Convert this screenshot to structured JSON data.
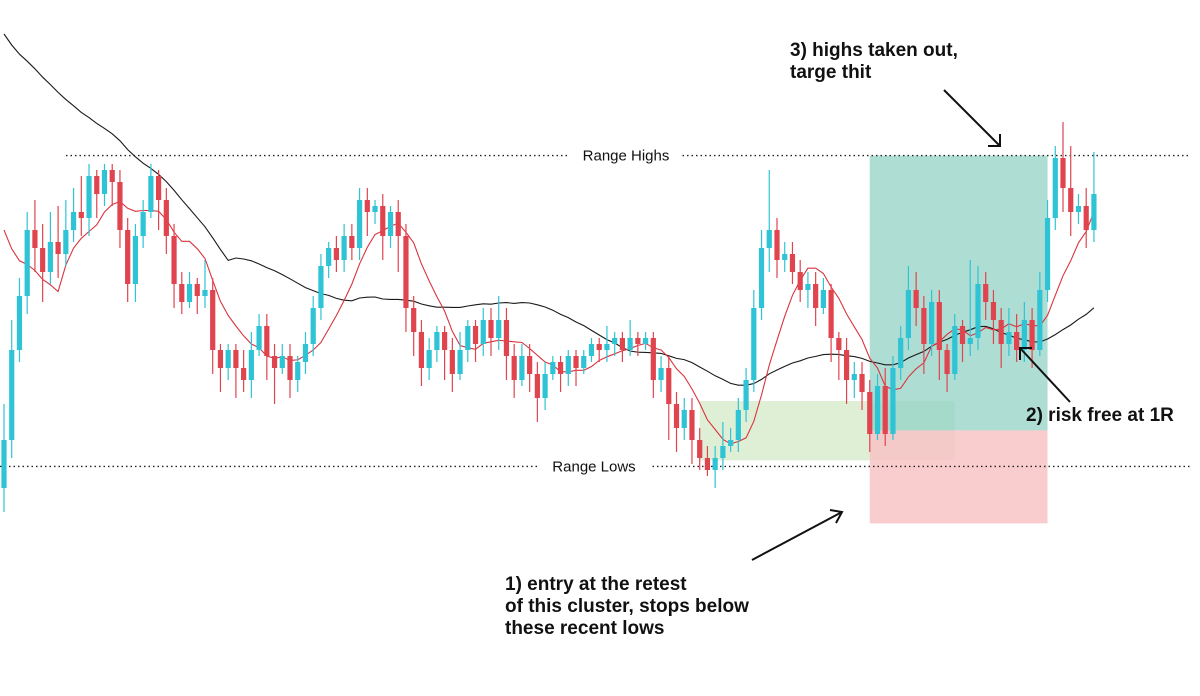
{
  "chart_data": {
    "type": "candlestick",
    "title": "",
    "xlabel": "",
    "ylabel": "",
    "ylim": [
      0,
      100
    ],
    "grid": false,
    "colors": {
      "up": "#2ec4d6",
      "down": "#e0444f",
      "ma_fast": "#d9343e",
      "ma_slow": "#1a1a1a",
      "entry_zone": "#d8eccf",
      "profit_zone": "#8fd0c4",
      "loss_zone": "#f8c3c6",
      "level_line": "#222222"
    },
    "levels": [
      {
        "label": "Range Highs",
        "value": 77.4
      },
      {
        "label": "Range Lows",
        "value": 25.6
      }
    ],
    "zones": [
      {
        "name": "entry-cluster",
        "x0": 90,
        "x1": 123,
        "y0": 26.6,
        "y1": 36.5
      },
      {
        "name": "target-zone",
        "x0": 112,
        "x1": 135,
        "y0": 31.6,
        "y1": 77.4
      },
      {
        "name": "stop-zone",
        "x0": 112,
        "x1": 135,
        "y0": 16.1,
        "y1": 31.6
      }
    ],
    "candles": [
      [
        22,
        30,
        18,
        36
      ],
      [
        30,
        45,
        27,
        50
      ],
      [
        45,
        54,
        43,
        57
      ],
      [
        54,
        65,
        51,
        68
      ],
      [
        65,
        62,
        58,
        70
      ],
      [
        62,
        58,
        53,
        66
      ],
      [
        58,
        63,
        56,
        68
      ],
      [
        63,
        61,
        57,
        69
      ],
      [
        61,
        65,
        59,
        70
      ],
      [
        65,
        68,
        63,
        72
      ],
      [
        68,
        67,
        64,
        74
      ],
      [
        67,
        74,
        64,
        76
      ],
      [
        74,
        71,
        67,
        75
      ],
      [
        71,
        75,
        69,
        76
      ],
      [
        75,
        73,
        69,
        76
      ],
      [
        73,
        65,
        62,
        75
      ],
      [
        65,
        56,
        53,
        67
      ],
      [
        56,
        64,
        53,
        66
      ],
      [
        64,
        68,
        62,
        70
      ],
      [
        68,
        74,
        67,
        76
      ],
      [
        74,
        70,
        65,
        75
      ],
      [
        70,
        64,
        61,
        72
      ],
      [
        64,
        56,
        52,
        66
      ],
      [
        56,
        53,
        51,
        58
      ],
      [
        53,
        56,
        52,
        58
      ],
      [
        56,
        54,
        51,
        57
      ],
      [
        54,
        55,
        52,
        60
      ],
      [
        55,
        45,
        41,
        57
      ],
      [
        45,
        42,
        38,
        46
      ],
      [
        42,
        45,
        40,
        46
      ],
      [
        45,
        42,
        37,
        46
      ],
      [
        42,
        40,
        38,
        45
      ],
      [
        40,
        45,
        37,
        48
      ],
      [
        45,
        49,
        44,
        51
      ],
      [
        49,
        44,
        40,
        51
      ],
      [
        44,
        42,
        36,
        46
      ],
      [
        42,
        44,
        41,
        46
      ],
      [
        44,
        40,
        37,
        46
      ],
      [
        40,
        43,
        38,
        44
      ],
      [
        43,
        46,
        41,
        48
      ],
      [
        46,
        52,
        44,
        54
      ],
      [
        52,
        59,
        50,
        61
      ],
      [
        59,
        62,
        57,
        63
      ],
      [
        62,
        60,
        58,
        64
      ],
      [
        60,
        64,
        58,
        66
      ],
      [
        64,
        62,
        60,
        66
      ],
      [
        62,
        70,
        60,
        72
      ],
      [
        70,
        68,
        64,
        72
      ],
      [
        68,
        69,
        66,
        70
      ],
      [
        69,
        64,
        60,
        71
      ],
      [
        64,
        68,
        62,
        69
      ],
      [
        68,
        64,
        58,
        70
      ],
      [
        64,
        52,
        48,
        66
      ],
      [
        52,
        48,
        44,
        54
      ],
      [
        48,
        42,
        39,
        50
      ],
      [
        42,
        45,
        40,
        47
      ],
      [
        45,
        48,
        43,
        49
      ],
      [
        48,
        45,
        40,
        49
      ],
      [
        45,
        41,
        38,
        47
      ],
      [
        41,
        45,
        40,
        48
      ],
      [
        45,
        49,
        43,
        50
      ],
      [
        49,
        46,
        43,
        50
      ],
      [
        46,
        50,
        44,
        52
      ],
      [
        50,
        47,
        44,
        52
      ],
      [
        47,
        50,
        45,
        54
      ],
      [
        50,
        44,
        40,
        52
      ],
      [
        44,
        40,
        37,
        46
      ],
      [
        40,
        44,
        39,
        46
      ],
      [
        44,
        41,
        38,
        46
      ],
      [
        41,
        37,
        33,
        43
      ],
      [
        37,
        41,
        35,
        43
      ],
      [
        41,
        43,
        40,
        44
      ],
      [
        43,
        41,
        38,
        44
      ],
      [
        41,
        44,
        39,
        45
      ],
      [
        44,
        42,
        39,
        45
      ],
      [
        42,
        44,
        41,
        45
      ],
      [
        44,
        46,
        43,
        47
      ],
      [
        46,
        45,
        43,
        47
      ],
      [
        45,
        46,
        43,
        49
      ],
      [
        46,
        47,
        44,
        48
      ],
      [
        47,
        45,
        43,
        48
      ],
      [
        45,
        47,
        44,
        50
      ],
      [
        47,
        46,
        44,
        48
      ],
      [
        46,
        47,
        45,
        48
      ],
      [
        47,
        40,
        37,
        48
      ],
      [
        40,
        42,
        38,
        44
      ],
      [
        42,
        36,
        30,
        44
      ],
      [
        36,
        32,
        28,
        38
      ],
      [
        32,
        35,
        30,
        37
      ],
      [
        35,
        30,
        26,
        37
      ],
      [
        30,
        27,
        25,
        32
      ],
      [
        27,
        25,
        24,
        29
      ],
      [
        25,
        27,
        22,
        29
      ],
      [
        27,
        29,
        25,
        33
      ],
      [
        29,
        30,
        28,
        32
      ],
      [
        30,
        35,
        28,
        37
      ],
      [
        35,
        40,
        33,
        42
      ],
      [
        40,
        52,
        38,
        55
      ],
      [
        52,
        62,
        50,
        65
      ],
      [
        62,
        65,
        58,
        75
      ],
      [
        65,
        60,
        57,
        67
      ],
      [
        60,
        61,
        58,
        63
      ],
      [
        61,
        58,
        56,
        63
      ],
      [
        58,
        55,
        53,
        60
      ],
      [
        55,
        56,
        52,
        58
      ],
      [
        56,
        52,
        49,
        58
      ],
      [
        52,
        55,
        51,
        57
      ],
      [
        55,
        47,
        43,
        56
      ],
      [
        47,
        45,
        40,
        48
      ],
      [
        45,
        40,
        36,
        47
      ],
      [
        40,
        41,
        37,
        43
      ],
      [
        41,
        38,
        35,
        43
      ],
      [
        38,
        31,
        28,
        40
      ],
      [
        31,
        39,
        30,
        41
      ],
      [
        39,
        31,
        29,
        42
      ],
      [
        31,
        42,
        30,
        44
      ],
      [
        42,
        47,
        40,
        49
      ],
      [
        47,
        55,
        45,
        59
      ],
      [
        55,
        52,
        49,
        58
      ],
      [
        52,
        46,
        41,
        54
      ],
      [
        46,
        53,
        44,
        55
      ],
      [
        53,
        45,
        40,
        55
      ],
      [
        45,
        41,
        38,
        46
      ],
      [
        41,
        49,
        40,
        51
      ],
      [
        49,
        46,
        43,
        50
      ],
      [
        46,
        47,
        44,
        60
      ],
      [
        47,
        56,
        45,
        59
      ],
      [
        56,
        53,
        50,
        58
      ],
      [
        53,
        50,
        46,
        55
      ],
      [
        50,
        46,
        42,
        52
      ],
      [
        46,
        48,
        44,
        52
      ],
      [
        48,
        45,
        43,
        51
      ],
      [
        45,
        50,
        43,
        53
      ],
      [
        50,
        45,
        42,
        52
      ],
      [
        45,
        55,
        44,
        58
      ],
      [
        55,
        67,
        53,
        70
      ],
      [
        67,
        77,
        65,
        79
      ],
      [
        77,
        72,
        68,
        83
      ],
      [
        72,
        68,
        64,
        79
      ],
      [
        68,
        69,
        66,
        71
      ],
      [
        69,
        65,
        62,
        72
      ],
      [
        65,
        71,
        63,
        78
      ]
    ],
    "annotations": [
      {
        "id": "highs",
        "text": [
          "3) highs taken out,",
          "targe thit"
        ]
      },
      {
        "id": "risk",
        "text": [
          "2) risk free at 1R"
        ]
      },
      {
        "id": "entry",
        "text": [
          "1) entry at the retest",
          "of this cluster, stops below",
          "these recent lows"
        ]
      }
    ]
  }
}
